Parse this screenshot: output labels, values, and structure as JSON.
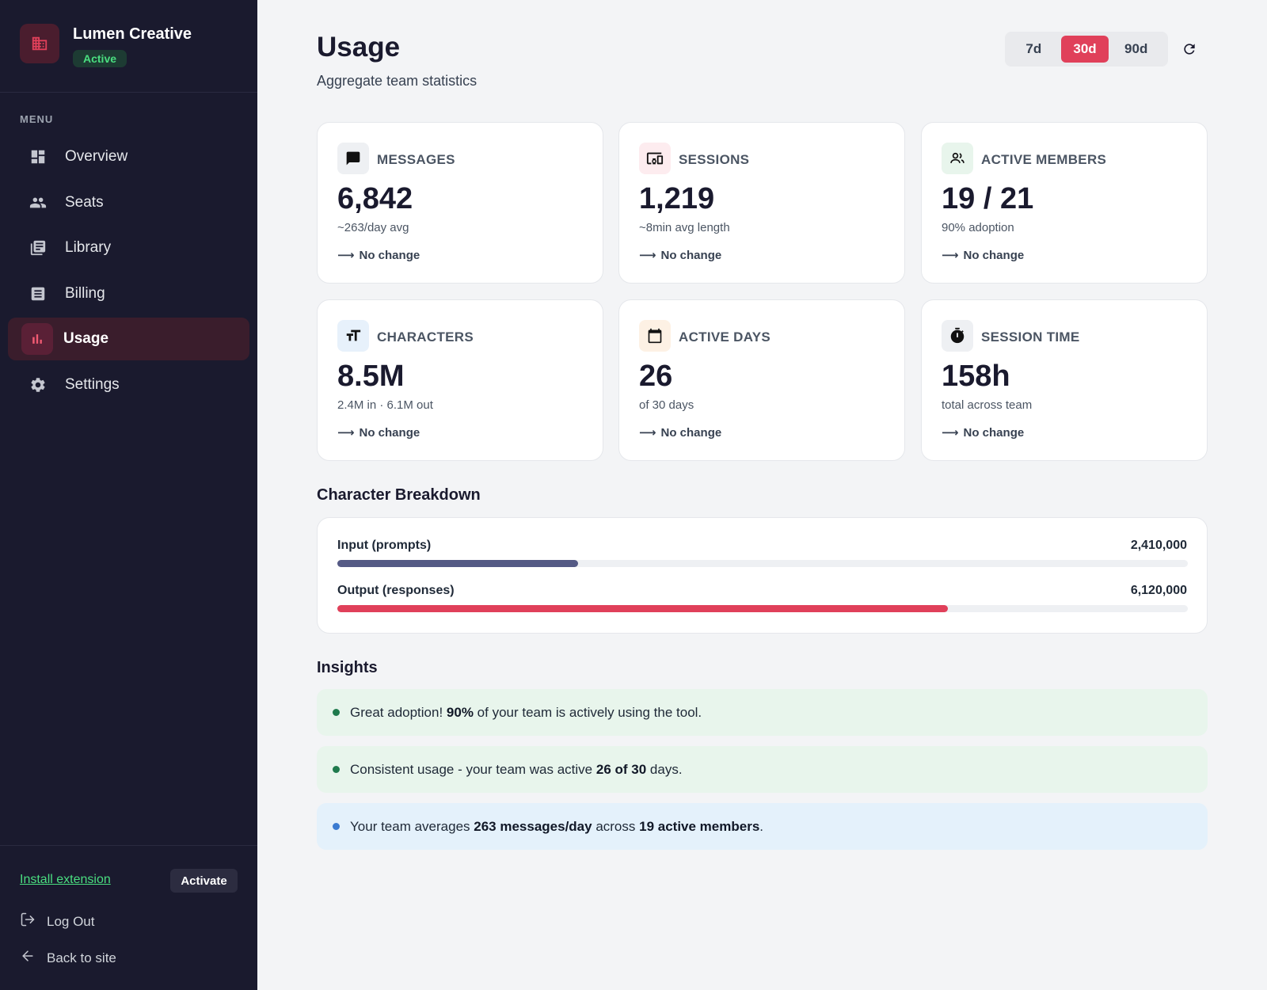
{
  "brand": {
    "name": "Lumen Creative",
    "status": "Active"
  },
  "sidebar": {
    "menu_heading": "MENU",
    "items": [
      {
        "label": "Overview",
        "icon": "dashboard-icon"
      },
      {
        "label": "Seats",
        "icon": "people-icon"
      },
      {
        "label": "Library",
        "icon": "library-icon"
      },
      {
        "label": "Billing",
        "icon": "receipt-icon"
      },
      {
        "label": "Usage",
        "icon": "bar-chart-icon",
        "active": true
      },
      {
        "label": "Settings",
        "icon": "gear-icon"
      }
    ],
    "install_extension": "Install extension",
    "activate": "Activate",
    "logout": "Log Out",
    "back_to_site": "Back to site"
  },
  "header": {
    "title": "Usage",
    "subtitle": "Aggregate team statistics",
    "ranges": [
      "7d",
      "30d",
      "90d"
    ],
    "selected_range": "30d"
  },
  "stats": [
    {
      "label": "MESSAGES",
      "value": "6,842",
      "sub": "~263/day avg",
      "change": "No change",
      "icon": "chat-icon",
      "icon_bg": "#eef0f3"
    },
    {
      "label": "SESSIONS",
      "value": "1,219",
      "sub": "~8min avg length",
      "change": "No change",
      "icon": "devices-icon",
      "icon_bg": "#fdecef"
    },
    {
      "label": "ACTIVE MEMBERS",
      "value": "19 / 21",
      "sub": "90% adoption",
      "change": "No change",
      "icon": "members-icon",
      "icon_bg": "#e8f5ec"
    },
    {
      "label": "CHARACTERS",
      "value": "8.5M",
      "sub": "2.4M in · 6.1M out",
      "change": "No change",
      "icon": "text-size-icon",
      "icon_bg": "#e7f1fb"
    },
    {
      "label": "ACTIVE DAYS",
      "value": "26",
      "sub": "of 30 days",
      "change": "No change",
      "icon": "calendar-icon",
      "icon_bg": "#fdf1e4"
    },
    {
      "label": "SESSION TIME",
      "value": "158h",
      "sub": "total across team",
      "change": "No change",
      "icon": "timer-icon",
      "icon_bg": "#eef0f3"
    }
  ],
  "breakdown": {
    "title": "Character Breakdown",
    "rows": [
      {
        "label": "Input (prompts)",
        "value": "2,410,000",
        "fraction": 0.283,
        "color": "#555a85"
      },
      {
        "label": "Output (responses)",
        "value": "6,120,000",
        "fraction": 0.718,
        "color": "#e0405a"
      }
    ]
  },
  "insights": {
    "title": "Insights",
    "items": [
      {
        "parts": [
          "Great adoption! ",
          "90%",
          " of your team is actively using the tool."
        ],
        "bg": "#e8f5ec",
        "dot": "#1f7a4d"
      },
      {
        "parts": [
          "Consistent usage - your team was active ",
          "26 of 30",
          " days."
        ],
        "bg": "#e8f5ec",
        "dot": "#1f7a4d"
      },
      {
        "parts": [
          "Your team averages ",
          "263 messages/day",
          " across ",
          "19 active members",
          "."
        ],
        "bg": "#e4f1fb",
        "dot": "#3b7bd1"
      }
    ]
  },
  "colors": {
    "sidebar_bg": "#1a1a2e",
    "accent": "#e0405a",
    "success": "#4ade80"
  }
}
